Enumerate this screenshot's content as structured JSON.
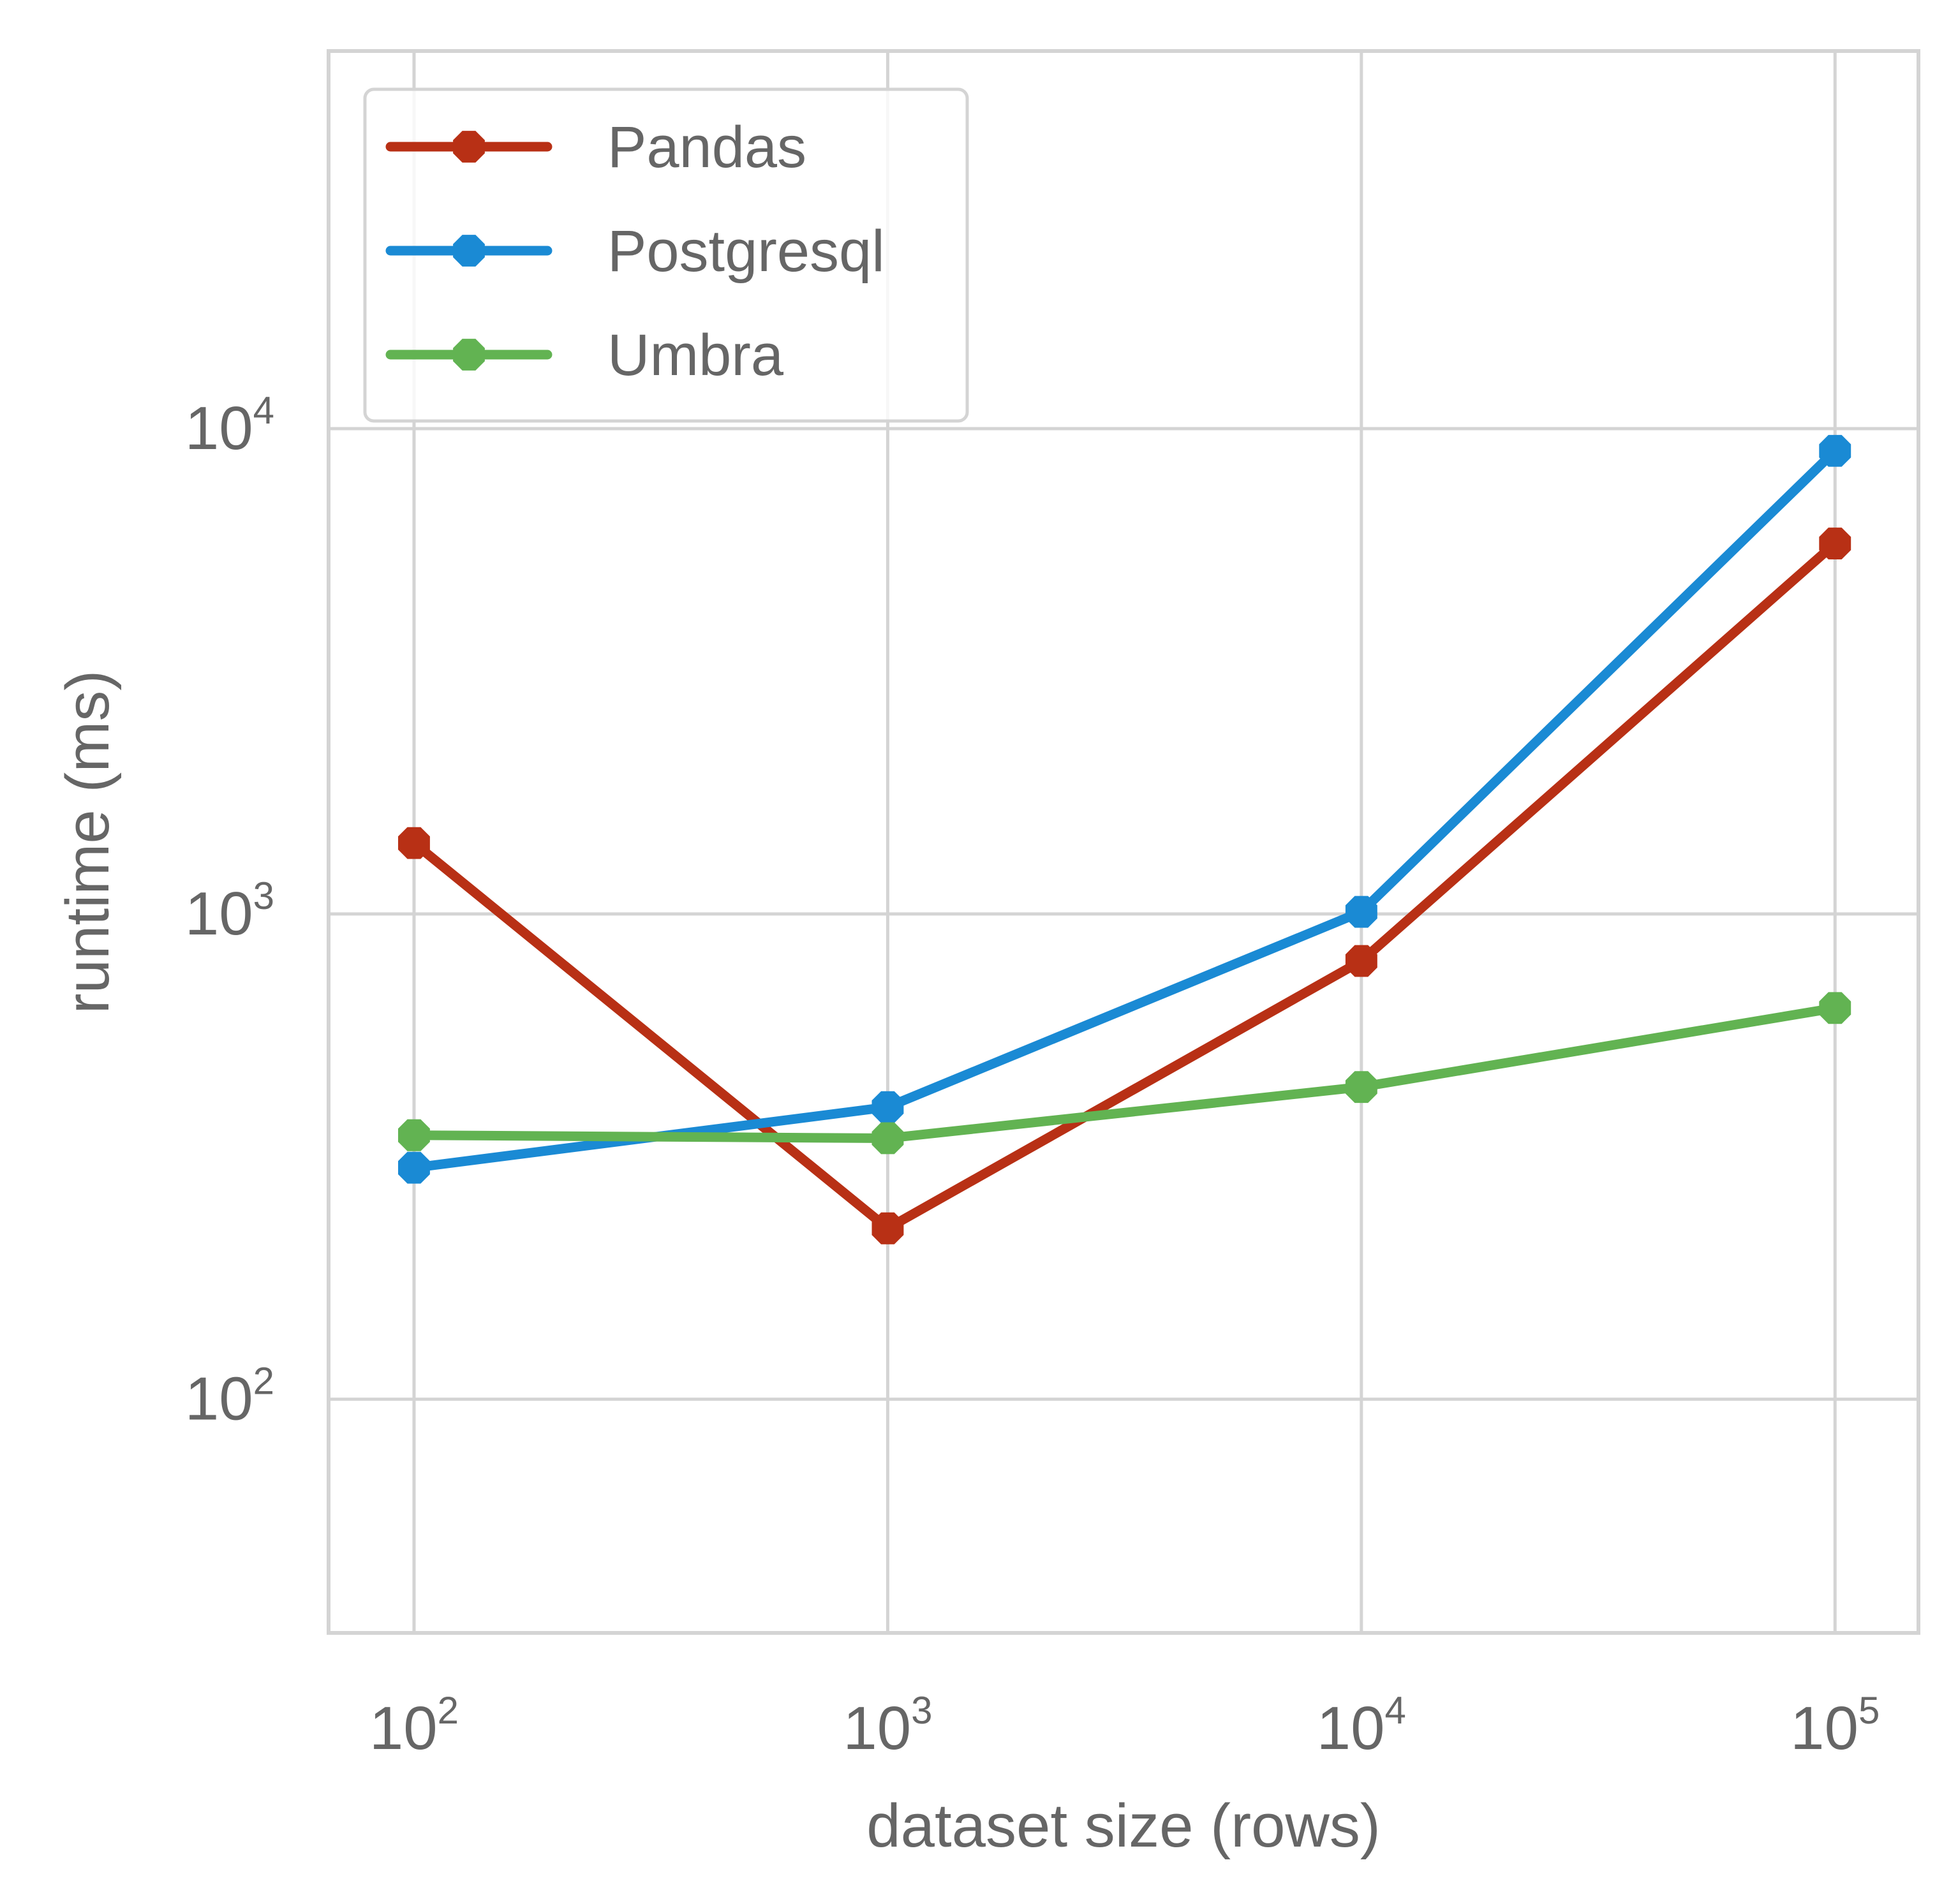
{
  "chart_data": {
    "type": "line",
    "xlabel": "dataset size (rows)",
    "ylabel": "runtime (ms)",
    "x_scale": "log",
    "y_scale": "log",
    "xlim": [
      66,
      150000
    ],
    "ylim": [
      33,
      60000
    ],
    "grid": true,
    "legend_position": "top-left",
    "x_ticks": [
      {
        "base": "10",
        "exp": "2",
        "value": 100
      },
      {
        "base": "10",
        "exp": "3",
        "value": 1000
      },
      {
        "base": "10",
        "exp": "4",
        "value": 10000
      },
      {
        "base": "10",
        "exp": "5",
        "value": 100000
      }
    ],
    "y_ticks": [
      {
        "base": "10",
        "exp": "2",
        "value": 100
      },
      {
        "base": "10",
        "exp": "3",
        "value": 1000
      },
      {
        "base": "10",
        "exp": "4",
        "value": 10000
      }
    ],
    "x": [
      100,
      1000,
      10000,
      100000
    ],
    "series": [
      {
        "name": "Pandas",
        "color": "#b83015",
        "values": [
          1400,
          225,
          800,
          5800
        ]
      },
      {
        "name": "Postgresql",
        "color": "#1a8ad4",
        "values": [
          300,
          400,
          1010,
          9000
        ]
      },
      {
        "name": "Umbra",
        "color": "#62b352",
        "values": [
          350,
          345,
          440,
          640
        ]
      }
    ]
  }
}
